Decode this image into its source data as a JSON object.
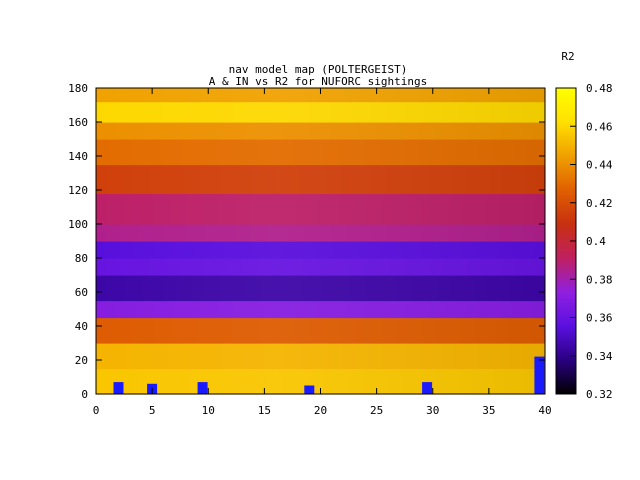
{
  "chart_data": {
    "type": "heatmap",
    "title": "nav model map (POLTERGEIST)",
    "subtitle": "A & IN vs R2 for NUFORC sightings",
    "xlabel": "",
    "ylabel": "",
    "xlim": [
      0,
      40
    ],
    "ylim": [
      0,
      180
    ],
    "x_ticks": [
      "0",
      "5",
      "10",
      "15",
      "20",
      "25",
      "30",
      "35",
      "40"
    ],
    "y_ticks": [
      "0",
      "20",
      "40",
      "60",
      "80",
      "100",
      "120",
      "140",
      "160",
      "180"
    ],
    "colorbar": {
      "label": "R2",
      "range": [
        0.32,
        0.48
      ],
      "ticks": [
        "0.32",
        "0.34",
        "0.36",
        "0.38",
        "0.4",
        "0.42",
        "0.44",
        "0.46",
        "0.48"
      ],
      "palette": [
        "#000000",
        "#2a0080",
        "#5a10e0",
        "#9020e0",
        "#c02060",
        "#c83010",
        "#e06000",
        "#f0a000",
        "#ffe000",
        "#ffff00"
      ]
    },
    "y_bands": [
      {
        "y": [
          0,
          15
        ],
        "r2": 0.455
      },
      {
        "y": [
          15,
          30
        ],
        "r2": 0.45
      },
      {
        "y": [
          30,
          45
        ],
        "r2": 0.425
      },
      {
        "y": [
          45,
          55
        ],
        "r2": 0.37
      },
      {
        "y": [
          55,
          70
        ],
        "r2": 0.345
      },
      {
        "y": [
          70,
          80
        ],
        "r2": 0.36
      },
      {
        "y": [
          80,
          90
        ],
        "r2": 0.355
      },
      {
        "y": [
          90,
          100
        ],
        "r2": 0.385
      },
      {
        "y": [
          100,
          118
        ],
        "r2": 0.39
      },
      {
        "y": [
          118,
          135
        ],
        "r2": 0.415
      },
      {
        "y": [
          135,
          150
        ],
        "r2": 0.43
      },
      {
        "y": [
          150,
          160
        ],
        "r2": 0.44
      },
      {
        "y": [
          160,
          172
        ],
        "r2": 0.46
      },
      {
        "y": [
          172,
          180
        ],
        "r2": 0.445
      }
    ],
    "markers": [
      {
        "x": 2,
        "y": [
          0,
          7
        ]
      },
      {
        "x": 5,
        "y": [
          0,
          6
        ]
      },
      {
        "x": 9.5,
        "y": [
          0,
          7
        ]
      },
      {
        "x": 19,
        "y": [
          0,
          5
        ]
      },
      {
        "x": 29.5,
        "y": [
          0,
          7
        ]
      },
      {
        "x": 39.5,
        "y": [
          0,
          22
        ]
      }
    ],
    "marker_color": "#1a1aff"
  }
}
